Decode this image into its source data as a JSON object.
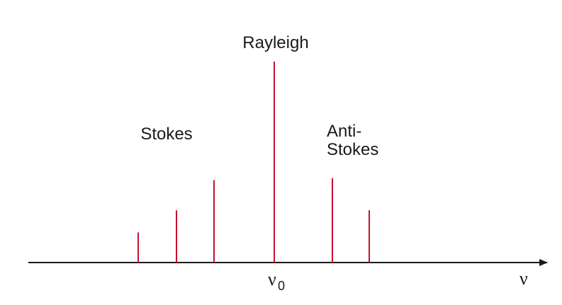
{
  "labels": {
    "rayleigh": "Rayleigh",
    "stokes": "Stokes",
    "anti_stokes_line1": "Anti-",
    "anti_stokes_line2": "Stokes",
    "nu_zero_symbol": "ν",
    "nu_zero_subscript": "0",
    "nu_axis": "ν"
  },
  "colors": {
    "line": "#c8102e",
    "axis": "#1a1a1a"
  },
  "spectral_lines": [
    {
      "id": "stokes-line-1",
      "group": "stokes",
      "relative_height": 0.15
    },
    {
      "id": "stokes-line-2",
      "group": "stokes",
      "relative_height": 0.26
    },
    {
      "id": "stokes-line-3",
      "group": "stokes",
      "relative_height": 0.41
    },
    {
      "id": "rayleigh-line",
      "group": "rayleigh",
      "relative_height": 1.0
    },
    {
      "id": "anti-stokes-line-1",
      "group": "anti-stokes",
      "relative_height": 0.42
    },
    {
      "id": "anti-stokes-line-2",
      "group": "anti-stokes",
      "relative_height": 0.26
    }
  ]
}
